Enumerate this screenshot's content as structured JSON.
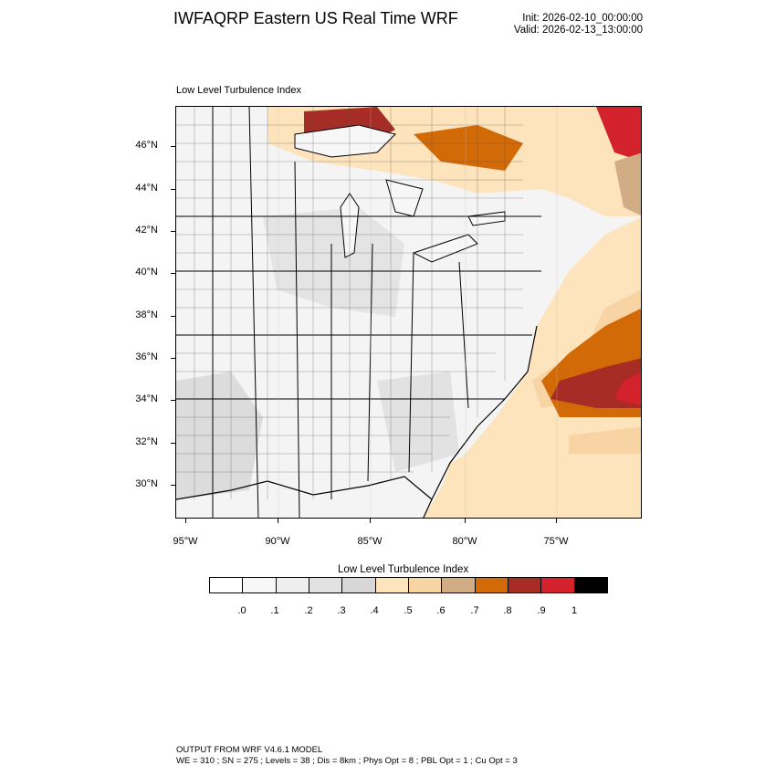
{
  "header": {
    "title": "IWFAQRP Eastern US Real Time WRF",
    "init": "Init: 2026-02-10_00:00:00",
    "valid": "Valid: 2026-02-13_13:00:00"
  },
  "map": {
    "subtitle": "Low Level Turbulence Index",
    "lat_labels": [
      "46°N",
      "44°N",
      "42°N",
      "40°N",
      "38°N",
      "36°N",
      "34°N",
      "32°N",
      "30°N"
    ],
    "lon_labels": [
      "95°W",
      "90°W",
      "85°W",
      "80°W",
      "75°W"
    ],
    "ocean_color": "#fde4bd",
    "land_color": "#f4f4f4"
  },
  "colorbar": {
    "title": "Low Level Turbulence Index",
    "labels": [
      ".0",
      ".1",
      ".2",
      ".3",
      ".4",
      ".5",
      ".6",
      ".7",
      ".8",
      ".9",
      "1"
    ],
    "colors": [
      "#ffffff",
      "#f7f7f7",
      "#eeeeee",
      "#e2e2e2",
      "#d7d7d7",
      "#fde4bd",
      "#f8d3a3",
      "#d2ac85",
      "#d36a08",
      "#a72c25",
      "#d4222d",
      "#000000"
    ]
  },
  "footer": {
    "line1": "OUTPUT FROM WRF V4.6.1 MODEL",
    "line2": "WE = 310 ; SN = 275 ; Levels = 38 ; Dis = 8km ; Phys Opt = 8 ; PBL Opt = 1 ; Cu Opt = 3"
  }
}
